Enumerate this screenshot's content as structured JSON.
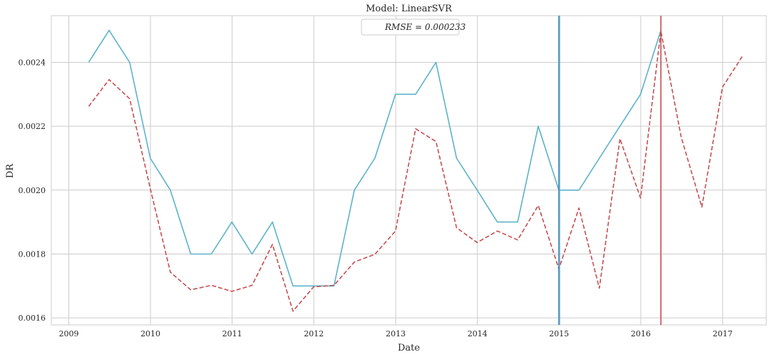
{
  "chart_data": {
    "type": "line",
    "title": "Model: LinearSVR",
    "xlabel": "Date",
    "ylabel": "DR",
    "xlim": [
      "2008-10-15",
      "2017-07-15"
    ],
    "ylim": [
      0.001578,
      0.002546
    ],
    "x_ticks": [
      "2009",
      "2010",
      "2011",
      "2012",
      "2013",
      "2014",
      "2015",
      "2016",
      "2017"
    ],
    "y_ticks": [
      "0.0016",
      "0.0018",
      "0.0020",
      "0.0022",
      "0.0024"
    ],
    "grid": true,
    "legend": {
      "placement": "upper-center",
      "text": "RMSE = 0.000233"
    },
    "series": [
      {
        "color": "#5bb3c9",
        "style": "solid",
        "x": [
          "2009-03-31",
          "2009-06-30",
          "2009-09-30",
          "2009-12-31",
          "2010-03-31",
          "2010-06-30",
          "2010-09-30",
          "2010-12-31",
          "2011-03-31",
          "2011-06-30",
          "2011-09-30",
          "2011-12-31",
          "2012-03-31",
          "2012-06-30",
          "2012-09-30",
          "2012-12-31",
          "2013-03-31",
          "2013-06-30",
          "2013-09-30",
          "2013-12-31",
          "2014-03-31",
          "2014-06-30",
          "2014-09-30",
          "2014-12-31",
          "2015-03-31",
          "2015-06-30",
          "2015-09-30",
          "2015-12-31",
          "2016-03-31"
        ],
        "y": [
          0.0024,
          0.0025,
          0.0024,
          0.0021,
          0.002,
          0.0018,
          0.0018,
          0.0019,
          0.0018,
          0.0019,
          0.0017,
          0.0017,
          0.0017,
          0.002,
          0.0021,
          0.0023,
          0.0023,
          0.0024,
          0.0021,
          0.002,
          0.0019,
          0.0019,
          0.0022,
          0.002,
          0.002,
          0.0021,
          0.0022,
          0.0023,
          0.0025
        ]
      },
      {
        "color": "#c44e52",
        "style": "dashed",
        "x": [
          "2009-03-31",
          "2009-06-30",
          "2009-09-30",
          "2009-12-31",
          "2010-03-31",
          "2010-06-30",
          "2010-09-30",
          "2010-12-31",
          "2011-03-31",
          "2011-06-30",
          "2011-09-30",
          "2011-12-31",
          "2012-03-31",
          "2012-06-30",
          "2012-09-30",
          "2012-12-31",
          "2013-03-31",
          "2013-06-30",
          "2013-09-30",
          "2013-12-31",
          "2014-03-31",
          "2014-06-30",
          "2014-09-30",
          "2014-12-31",
          "2015-03-31",
          "2015-06-30",
          "2015-09-30",
          "2015-12-31",
          "2016-03-31",
          "2016-06-30",
          "2016-09-30",
          "2016-12-31",
          "2017-03-31"
        ],
        "y": [
          0.002262,
          0.002346,
          0.002286,
          0.002005,
          0.001743,
          0.001688,
          0.001702,
          0.001683,
          0.001702,
          0.00183,
          0.001621,
          0.001697,
          0.001702,
          0.001775,
          0.001799,
          0.001872,
          0.002192,
          0.002152,
          0.001882,
          0.001836,
          0.001872,
          0.001844,
          0.001952,
          0.001753,
          0.001944,
          0.001693,
          0.002161,
          0.001975,
          0.002498,
          0.002165,
          0.001947,
          0.002322,
          0.00242
        ]
      }
    ],
    "vertical_lines": [
      {
        "x": "2014-12-31",
        "color": "#4c72b0"
      },
      {
        "x": "2014-12-31",
        "color": "#5bb3c9"
      },
      {
        "x": "2016-03-31",
        "color": "#c44e52"
      }
    ]
  }
}
